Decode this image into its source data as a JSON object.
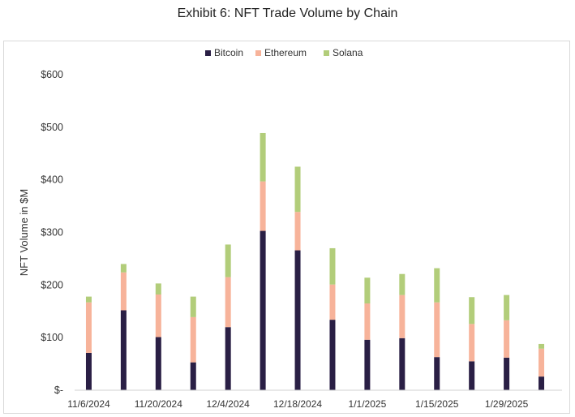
{
  "chart_data": {
    "type": "bar",
    "stacked": true,
    "title": "Exhibit 6: NFT Trade Volume by Chain",
    "ylabel": "NFT Volume in $M",
    "xlabel": "",
    "ylim": [
      0,
      600
    ],
    "yticks": [
      0,
      100,
      200,
      300,
      400,
      500,
      600
    ],
    "ytick_labels": [
      "$-",
      "$100",
      "$200",
      "$300",
      "$400",
      "$500",
      "$600"
    ],
    "x_tick_labels": [
      "11/6/2024",
      "11/20/2024",
      "12/4/2024",
      "12/18/2024",
      "1/1/2025",
      "1/15/2025",
      "1/29/2025"
    ],
    "categories": [
      "11/6/2024",
      "11/13/2024",
      "11/20/2024",
      "11/27/2024",
      "12/4/2024",
      "12/11/2024",
      "12/18/2024",
      "12/25/2024",
      "1/1/2025",
      "1/8/2025",
      "1/15/2025",
      "1/22/2025",
      "1/29/2025",
      "2/5/2025"
    ],
    "series": [
      {
        "name": "Bitcoin",
        "color": "#2a1f45",
        "values": [
          71,
          152,
          101,
          53,
          120,
          303,
          266,
          134,
          96,
          99,
          63,
          55,
          62,
          26
        ]
      },
      {
        "name": "Ethereum",
        "color": "#f7b39a",
        "values": [
          96,
          72,
          81,
          86,
          95,
          94,
          73,
          67,
          69,
          82,
          104,
          71,
          71,
          53
        ]
      },
      {
        "name": "Solana",
        "color": "#b2cd7a",
        "values": [
          11,
          16,
          21,
          39,
          62,
          92,
          86,
          69,
          49,
          40,
          65,
          51,
          48,
          9
        ]
      }
    ],
    "grid": false,
    "legend": "top-center"
  }
}
